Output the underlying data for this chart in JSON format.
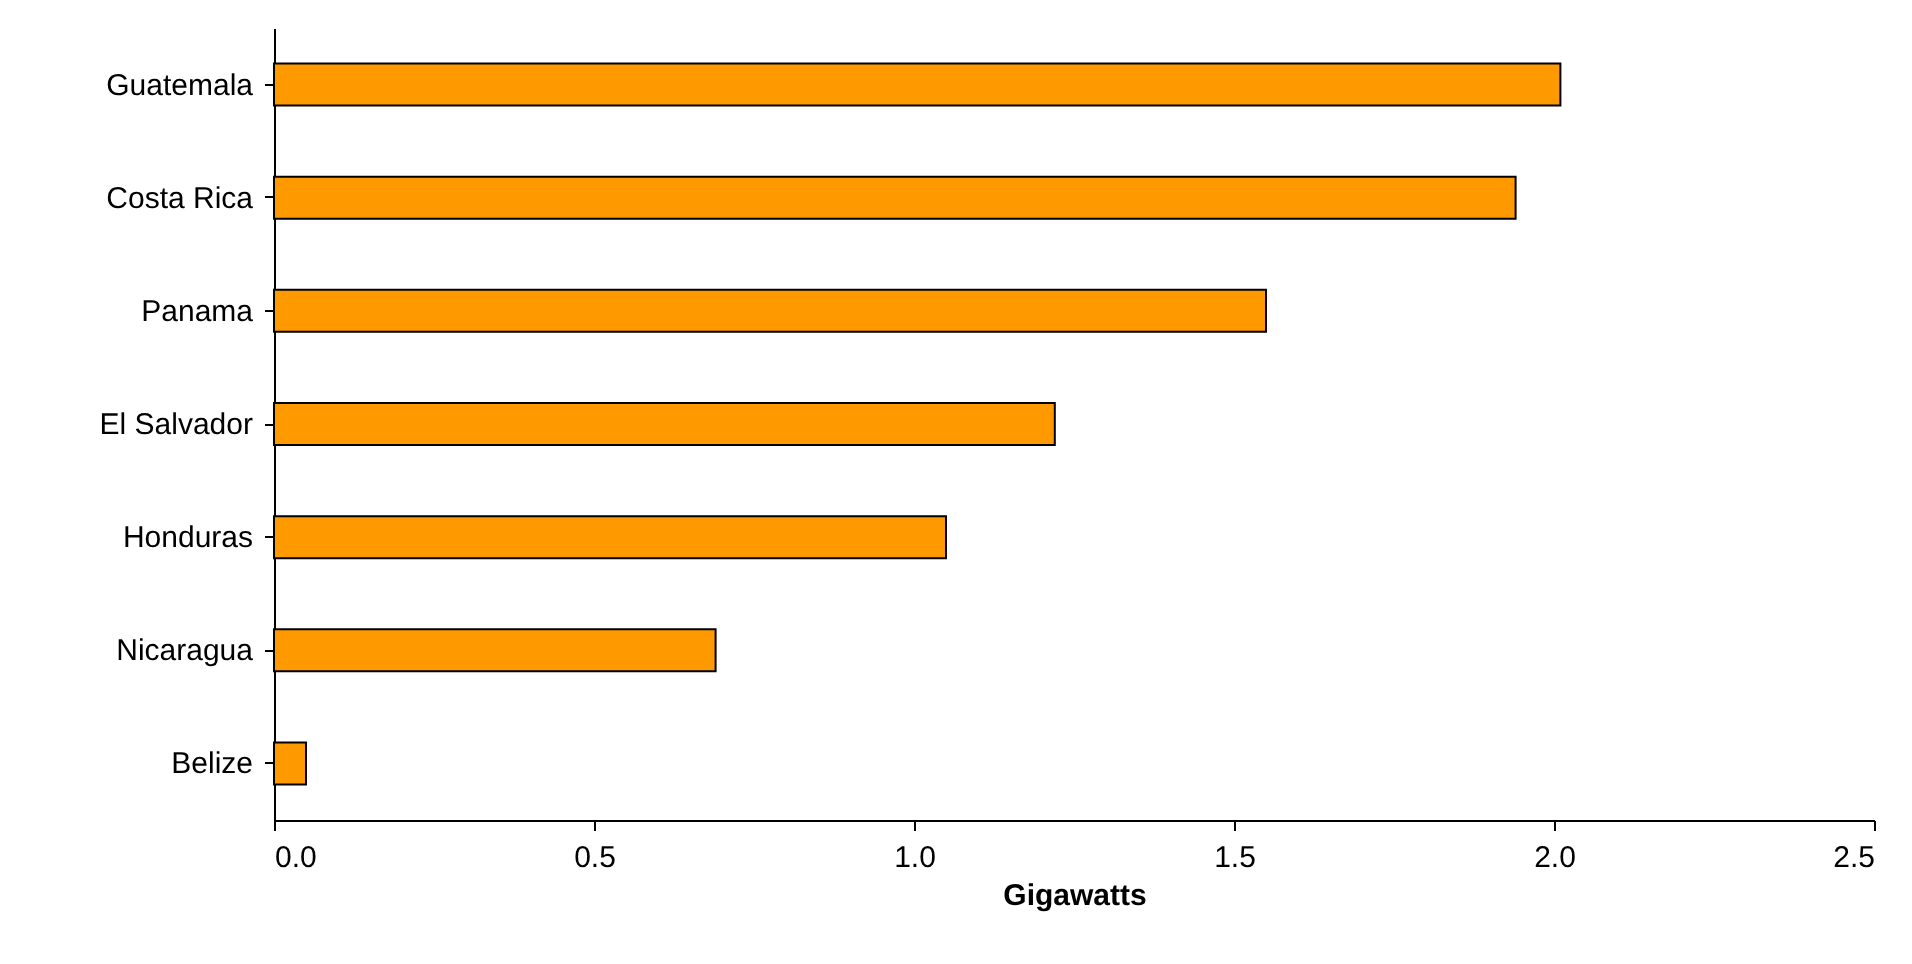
{
  "chart_data": {
    "type": "bar",
    "orientation": "horizontal",
    "xlabel": "Gigawatts",
    "categories": [
      "Guatemala",
      "Costa Rica",
      "Panama",
      "El Salvador",
      "Honduras",
      "Nicaragua",
      "Belize"
    ],
    "values": [
      2.01,
      1.94,
      1.55,
      1.22,
      1.05,
      0.69,
      0.05
    ],
    "color": "#ff9900",
    "xlim": [
      0,
      2.5
    ],
    "xticks": [
      {
        "value": 0,
        "label": "0.0"
      },
      {
        "value": 0.5,
        "label": "0.5"
      },
      {
        "value": 1,
        "label": "1.0"
      },
      {
        "value": 1.5,
        "label": "1.5"
      },
      {
        "value": 2,
        "label": "2.0"
      },
      {
        "value": 2.5,
        "label": "2.5"
      }
    ],
    "grid": false
  }
}
